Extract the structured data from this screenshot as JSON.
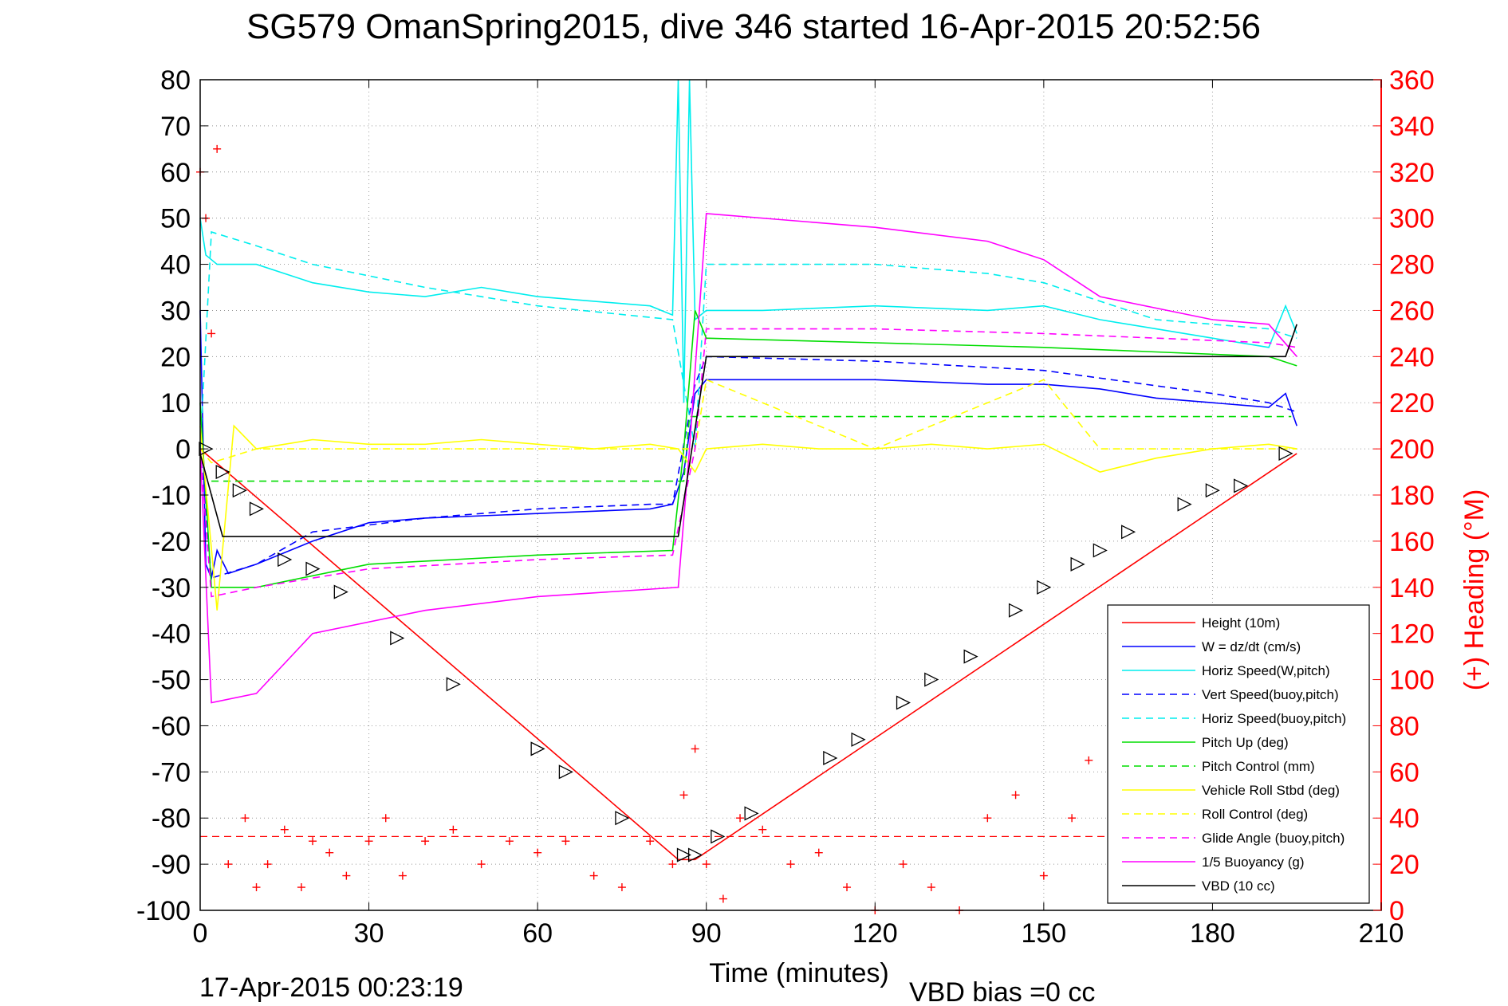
{
  "chart_data": {
    "type": "line",
    "title": "SG579 OmanSpring2015, dive 346 started 16-Apr-2015 20:52:56",
    "xlabel": "Time (minutes)",
    "ylabel_right": "(+) Heading (°M)",
    "footer_left": "17-Apr-2015 00:23:19",
    "footer_right": "VBD bias =0 cc",
    "xlim": [
      0,
      210
    ],
    "ylim_left": [
      -100,
      80
    ],
    "ylim_right": [
      0,
      360
    ],
    "x_ticks": [
      0,
      30,
      60,
      90,
      120,
      150,
      180,
      210
    ],
    "y_ticks_left": [
      80,
      70,
      60,
      50,
      40,
      30,
      20,
      10,
      0,
      -10,
      -20,
      -30,
      -40,
      -50,
      -60,
      -70,
      -80,
      -90,
      -100
    ],
    "y_ticks_right": [
      360,
      340,
      320,
      300,
      280,
      260,
      240,
      220,
      200,
      180,
      160,
      140,
      120,
      100,
      80,
      60,
      40,
      20,
      0
    ],
    "grid": true,
    "legend_position": "lower-right",
    "colors": {
      "heading": "#ff0000",
      "right_axis": "#ff0000"
    },
    "series": [
      {
        "name": "Height (10m)",
        "color": "#ff0000",
        "dash": "solid",
        "x": [
          0,
          85,
          88,
          195
        ],
        "y": [
          0,
          -89,
          -89,
          -1
        ]
      },
      {
        "name": "W = dz/dt (cm/s)",
        "color": "#0000ff",
        "dash": "solid",
        "x": [
          0,
          1,
          2,
          3,
          5,
          10,
          20,
          30,
          40,
          60,
          80,
          84,
          86,
          88,
          90,
          100,
          120,
          140,
          150,
          160,
          170,
          180,
          190,
          193,
          195
        ],
        "y": [
          30,
          -25,
          -28,
          -22,
          -27,
          -25,
          -20,
          -16,
          -15,
          -14,
          -13,
          -12,
          -5,
          12,
          15,
          15,
          15,
          14,
          14,
          13,
          11,
          10,
          9,
          12,
          5
        ]
      },
      {
        "name": "Horiz Speed(W,pitch)",
        "color": "#00eeee",
        "dash": "solid",
        "x": [
          0,
          1,
          3,
          10,
          20,
          30,
          40,
          50,
          60,
          70,
          80,
          84,
          85,
          86,
          87,
          88,
          90,
          100,
          120,
          140,
          150,
          160,
          170,
          180,
          190,
          193,
          195
        ],
        "y": [
          50,
          42,
          40,
          40,
          36,
          34,
          33,
          35,
          33,
          32,
          31,
          29,
          80,
          10,
          80,
          28,
          30,
          30,
          31,
          30,
          31,
          28,
          26,
          24,
          22,
          31,
          25
        ]
      },
      {
        "name": "Vert Speed(buoy,pitch)",
        "color": "#0000ff",
        "dash": "dashed",
        "x": [
          0,
          2,
          10,
          20,
          40,
          60,
          80,
          84,
          88,
          90,
          120,
          150,
          180,
          190,
          195
        ],
        "y": [
          0,
          -28,
          -25,
          -18,
          -15,
          -13,
          -12,
          -12,
          14,
          20,
          19,
          17,
          12,
          10,
          8
        ]
      },
      {
        "name": "Horiz Speed(buoy,pitch)",
        "color": "#00eeee",
        "dash": "dashed",
        "x": [
          0,
          2,
          10,
          20,
          40,
          60,
          84,
          88,
          90,
          120,
          140,
          150,
          170,
          190,
          195
        ],
        "y": [
          0,
          47,
          44,
          40,
          35,
          31,
          28,
          0,
          40,
          40,
          38,
          36,
          28,
          26,
          24
        ]
      },
      {
        "name": "Pitch Up (deg)",
        "color": "#00dd00",
        "dash": "solid",
        "x": [
          0,
          2,
          10,
          30,
          60,
          84,
          86,
          88,
          90,
          120,
          150,
          170,
          190,
          195
        ],
        "y": [
          10,
          -30,
          -30,
          -25,
          -23,
          -22,
          0,
          30,
          24,
          23,
          22,
          21,
          20,
          18
        ]
      },
      {
        "name": "Pitch Control (mm)",
        "color": "#00dd00",
        "dash": "dashed",
        "x": [
          2,
          86,
          87,
          194
        ],
        "y": [
          -7,
          -7,
          7,
          7
        ]
      },
      {
        "name": "Vehicle Roll Stbd (deg)",
        "color": "#ffff00",
        "dash": "solid",
        "x": [
          0,
          3,
          6,
          10,
          20,
          30,
          40,
          50,
          60,
          70,
          80,
          85,
          88,
          90,
          100,
          110,
          120,
          130,
          140,
          150,
          160,
          170,
          180,
          190,
          195
        ],
        "y": [
          5,
          -35,
          5,
          0,
          2,
          1,
          1,
          2,
          1,
          0,
          1,
          0,
          -5,
          0,
          1,
          0,
          0,
          1,
          0,
          1,
          -5,
          -2,
          0,
          1,
          0
        ]
      },
      {
        "name": "Roll Control (deg)",
        "color": "#ffff00",
        "dash": "dashed",
        "x": [
          0,
          2,
          10,
          30,
          60,
          85,
          88,
          90,
          120,
          150,
          160,
          180,
          195
        ],
        "y": [
          0,
          -3,
          0,
          0,
          0,
          0,
          0,
          15,
          0,
          15,
          0,
          0,
          0
        ]
      },
      {
        "name": "Glide Angle (buoy,pitch)",
        "color": "#ff00ff",
        "dash": "dashed",
        "x": [
          0,
          2,
          10,
          30,
          60,
          84,
          88,
          90,
          120,
          150,
          170,
          190,
          195
        ],
        "y": [
          0,
          -32,
          -30,
          -26,
          -24,
          -23,
          0,
          26,
          26,
          25,
          24,
          23,
          22
        ]
      },
      {
        "name": "1/5 Buoyancy (g)",
        "color": "#ff00ff",
        "dash": "solid",
        "x": [
          0,
          2,
          10,
          20,
          40,
          60,
          85,
          87,
          90,
          120,
          140,
          150,
          160,
          180,
          190,
          195
        ],
        "y": [
          0,
          -55,
          -53,
          -40,
          -35,
          -32,
          -30,
          0,
          51,
          48,
          45,
          41,
          33,
          28,
          27,
          20
        ]
      },
      {
        "name": "VBD (10 cc)",
        "color": "#000000",
        "dash": "solid",
        "x": [
          0,
          4,
          85,
          90,
          193,
          195
        ],
        "y": [
          -1,
          -19,
          -19,
          20,
          20,
          27
        ]
      }
    ],
    "heading_reference_deg": 32,
    "heading_deg": {
      "x": [
        0,
        1,
        2,
        3,
        5,
        8,
        10,
        12,
        15,
        18,
        20,
        23,
        26,
        30,
        33,
        36,
        40,
        45,
        50,
        55,
        60,
        65,
        70,
        75,
        80,
        84,
        86,
        88,
        90,
        93,
        96,
        100,
        105,
        110,
        115,
        120,
        125,
        130,
        135,
        140,
        145,
        150,
        155,
        158,
        162,
        165,
        170,
        175,
        180,
        185,
        190,
        195
      ],
      "y": [
        320,
        300,
        250,
        330,
        20,
        40,
        10,
        20,
        35,
        10,
        30,
        25,
        15,
        30,
        40,
        15,
        30,
        35,
        20,
        30,
        25,
        30,
        15,
        10,
        30,
        20,
        50,
        70,
        20,
        5,
        40,
        35,
        20,
        25,
        10,
        0,
        20,
        10,
        0,
        40,
        50,
        15,
        40,
        65,
        30,
        20,
        40,
        10,
        20,
        30,
        20,
        10
      ]
    },
    "markers_triangle": {
      "x": [
        1,
        4,
        7,
        10,
        15,
        20,
        25,
        35,
        45,
        60,
        65,
        75,
        86,
        88,
        92,
        98,
        112,
        117,
        125,
        130,
        137,
        145,
        150,
        156,
        160,
        165,
        175,
        180,
        185,
        193
      ],
      "y": [
        0,
        -5,
        -9,
        -13,
        -24,
        -26,
        -31,
        -41,
        -51,
        -65,
        -70,
        -80,
        -88,
        -88,
        -84,
        -79,
        -67,
        -63,
        -55,
        -50,
        -45,
        -35,
        -30,
        -25,
        -22,
        -18,
        -12,
        -9,
        -8,
        -1
      ]
    }
  }
}
